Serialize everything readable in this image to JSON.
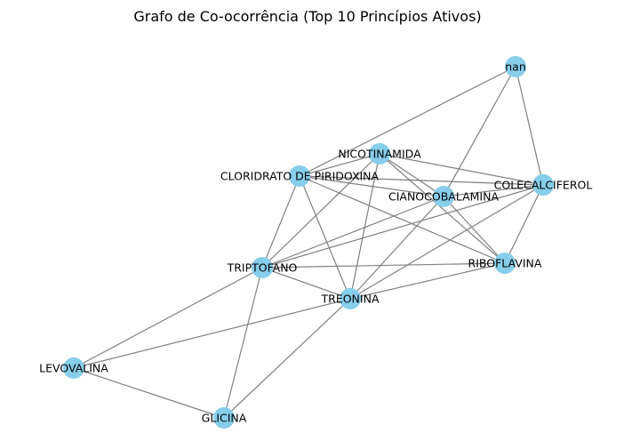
{
  "title": "Grafo de Co-ocorrência (Top 10 Princípios Ativos)",
  "colors": {
    "node": "#87CEEB",
    "edge": "#808080",
    "background": "#ffffff",
    "text": "#000000"
  },
  "nodes": [
    {
      "id": "nan",
      "label": "nan"
    },
    {
      "id": "nicotinamida",
      "label": "NICOTINAMIDA"
    },
    {
      "id": "piridoxina",
      "label": "CLORIDRATO DE PIRIDOXINA"
    },
    {
      "id": "cianocobalamina",
      "label": "CIANOCOBALAMINA"
    },
    {
      "id": "colecalciferol",
      "label": "COLECALCIFEROL"
    },
    {
      "id": "riboflavina",
      "label": "RIBOFLAVINA"
    },
    {
      "id": "triptofano",
      "label": "TRIPTOFANO"
    },
    {
      "id": "treonina",
      "label": "TREONINA"
    },
    {
      "id": "levovalina",
      "label": "LEVOVALINA"
    },
    {
      "id": "glicina",
      "label": "GLICINA"
    }
  ],
  "edges": [
    [
      "nan",
      "piridoxina"
    ],
    [
      "nan",
      "cianocobalamina"
    ],
    [
      "nan",
      "colecalciferol"
    ],
    [
      "nicotinamida",
      "piridoxina"
    ],
    [
      "nicotinamida",
      "cianocobalamina"
    ],
    [
      "nicotinamida",
      "colecalciferol"
    ],
    [
      "nicotinamida",
      "riboflavina"
    ],
    [
      "nicotinamida",
      "triptofano"
    ],
    [
      "nicotinamida",
      "treonina"
    ],
    [
      "piridoxina",
      "cianocobalamina"
    ],
    [
      "piridoxina",
      "colecalciferol"
    ],
    [
      "piridoxina",
      "riboflavina"
    ],
    [
      "piridoxina",
      "triptofano"
    ],
    [
      "piridoxina",
      "treonina"
    ],
    [
      "cianocobalamina",
      "colecalciferol"
    ],
    [
      "cianocobalamina",
      "riboflavina"
    ],
    [
      "cianocobalamina",
      "triptofano"
    ],
    [
      "cianocobalamina",
      "treonina"
    ],
    [
      "colecalciferol",
      "riboflavina"
    ],
    [
      "colecalciferol",
      "triptofano"
    ],
    [
      "colecalciferol",
      "treonina"
    ],
    [
      "riboflavina",
      "triptofano"
    ],
    [
      "riboflavina",
      "treonina"
    ],
    [
      "triptofano",
      "treonina"
    ],
    [
      "triptofano",
      "levovalina"
    ],
    [
      "triptofano",
      "glicina"
    ],
    [
      "treonina",
      "levovalina"
    ],
    [
      "treonina",
      "glicina"
    ],
    [
      "levovalina",
      "glicina"
    ]
  ]
}
